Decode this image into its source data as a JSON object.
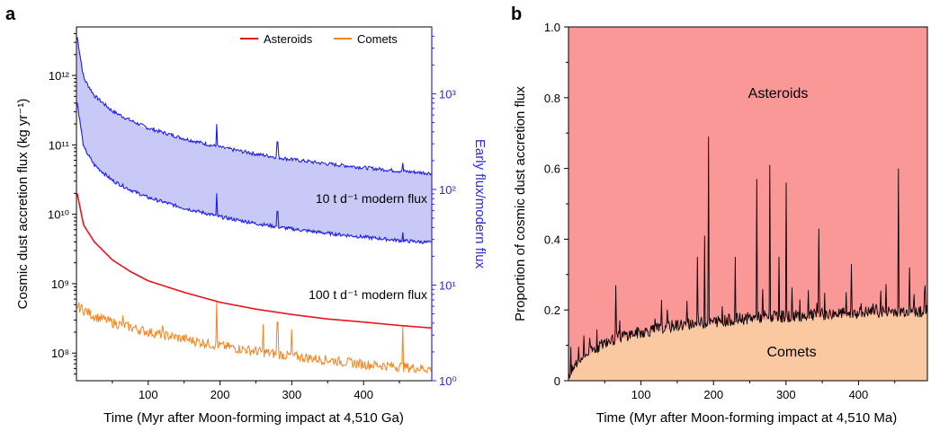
{
  "chart_data": [
    {
      "panel_label": "a",
      "type": "line",
      "xlabel": "Time (Myr after Moon-forming impact at 4,510 Ga)",
      "ylabel_left": "Cosmic dust accretion flux (kg yr⁻¹)",
      "ylabel_right": "Early flux/modern flux",
      "y_scale": "log",
      "xlim": [
        0,
        495
      ],
      "ylim_left": [
        40000000.0,
        5000000000000.0
      ],
      "ylim_right": [
        1,
        5000
      ],
      "x_ticks": [
        "100",
        "200",
        "300",
        "400"
      ],
      "y_ticks_left": [
        "10⁸",
        "10⁹",
        "10¹⁰",
        "10¹¹",
        "10¹²"
      ],
      "y_ticks_right": [
        "10⁰",
        "10¹",
        "10²",
        "10³"
      ],
      "legend_position": "top-right",
      "legend": [
        {
          "name": "Asteroids",
          "color": "#e8141c"
        },
        {
          "name": "Comets",
          "color": "#f7841c"
        }
      ],
      "annotations": [
        "10 t d⁻¹ modern flux",
        "100 t d⁻¹ modern flux"
      ],
      "right_axis_color": "#2b2bdb",
      "series": [
        {
          "name": "Asteroids",
          "color": "#e8141c",
          "x": [
            1,
            10,
            25,
            50,
            75,
            100,
            150,
            200,
            250,
            300,
            350,
            400,
            450,
            495
          ],
          "values": [
            20000000000.0,
            7000000000.0,
            4000000000.0,
            2200000000.0,
            1500000000.0,
            1100000000.0,
            750000000.0,
            540000000.0,
            430000000.0,
            360000000.0,
            310000000.0,
            280000000.0,
            250000000.0,
            230000000.0
          ]
        },
        {
          "name": "Comets",
          "color": "#f7841c",
          "x": [
            1,
            25,
            50,
            100,
            150,
            200,
            250,
            300,
            350,
            400,
            450,
            495
          ],
          "values": [
            450000000.0,
            320000000.0,
            260000000.0,
            190000000.0,
            150000000.0,
            120000000.0,
            100000000.0,
            85000000.0,
            75000000.0,
            65000000.0,
            60000000.0,
            55000000.0
          ],
          "spikes": [
            [
              65,
              350000000.0
            ],
            [
              120,
              250000000.0
            ],
            [
              195,
              550000000.0
            ],
            [
              260,
              260000000.0
            ],
            [
              280,
              280000000.0
            ],
            [
              300,
              220000000.0
            ],
            [
              455,
              240000000.0
            ]
          ]
        },
        {
          "name": "",
          "color": "#1c1cf0",
          "x": [
            1,
            10,
            25,
            50,
            75,
            100,
            150,
            200,
            250,
            300,
            350,
            400,
            450,
            495
          ],
          "values": [
            3500000000000.0,
            900000000000.0,
            500000000000.0,
            300000000000.0,
            220000000000.0,
            170000000000.0,
            120000000000.0,
            90000000000.0,
            72000000000.0,
            60000000000.0,
            52000000000.0,
            46000000000.0,
            41000000000.0,
            38000000000.0
          ],
          "spikes": [
            [
              195,
              200000000000.0
            ],
            [
              240,
              80000000000.0
            ],
            [
              280,
              110000000000.0
            ],
            [
              300,
              65000000000.0
            ],
            [
              455,
              55000000000.0
            ]
          ]
        },
        {
          "name": "",
          "color": "#1c1cf0",
          "x": [
            1,
            10,
            25,
            50,
            75,
            100,
            150,
            200,
            250,
            300,
            350,
            400,
            450,
            495
          ],
          "values": [
            400000000000.0,
            90000000000.0,
            50000000000.0,
            30000000000.0,
            22000000000.0,
            17000000000.0,
            12000000000.0,
            9000000000.0,
            7200000000.0,
            6000000000.0,
            5200000000.0,
            4600000000.0,
            4100000000.0,
            3800000000.0
          ],
          "spikes": [
            [
              195,
              20000000000.0
            ],
            [
              240,
              8000000000.0
            ],
            [
              280,
              11000000000.0
            ],
            [
              300,
              6500000000.0
            ],
            [
              455,
              5500000000.0
            ]
          ]
        }
      ]
    },
    {
      "panel_label": "b",
      "type": "area",
      "xlabel": "Time (Myr after Moon-forming impact at 4,510 Ma)",
      "ylabel": "Proportion of cosmic dust accretion flux",
      "xlim": [
        0,
        495
      ],
      "ylim": [
        0,
        1.0
      ],
      "x_ticks": [
        "100",
        "200",
        "300",
        "400"
      ],
      "y_ticks": [
        "0",
        "0.2",
        "0.4",
        "0.6",
        "0.8",
        "1.0"
      ],
      "region_labels": [
        "Asteroids",
        "Comets"
      ],
      "colors": {
        "asteroids": "#fa9898",
        "comets": "#fbc9a1",
        "line": "#000000"
      },
      "series": [
        {
          "name": "Comets",
          "x": [
            0,
            10,
            25,
            50,
            75,
            100,
            150,
            200,
            250,
            300,
            350,
            400,
            450,
            495
          ],
          "values": [
            0.0,
            0.04,
            0.07,
            0.1,
            0.12,
            0.13,
            0.15,
            0.16,
            0.17,
            0.175,
            0.18,
            0.185,
            0.19,
            0.19
          ],
          "spikes": [
            [
              65,
              0.27
            ],
            [
              178,
              0.35
            ],
            [
              188,
              0.41
            ],
            [
              193,
              0.69
            ],
            [
              230,
              0.35
            ],
            [
              260,
              0.57
            ],
            [
              278,
              0.61
            ],
            [
              290,
              0.35
            ],
            [
              300,
              0.56
            ],
            [
              345,
              0.43
            ],
            [
              390,
              0.33
            ],
            [
              455,
              0.6
            ],
            [
              470,
              0.32
            ]
          ]
        }
      ]
    }
  ]
}
